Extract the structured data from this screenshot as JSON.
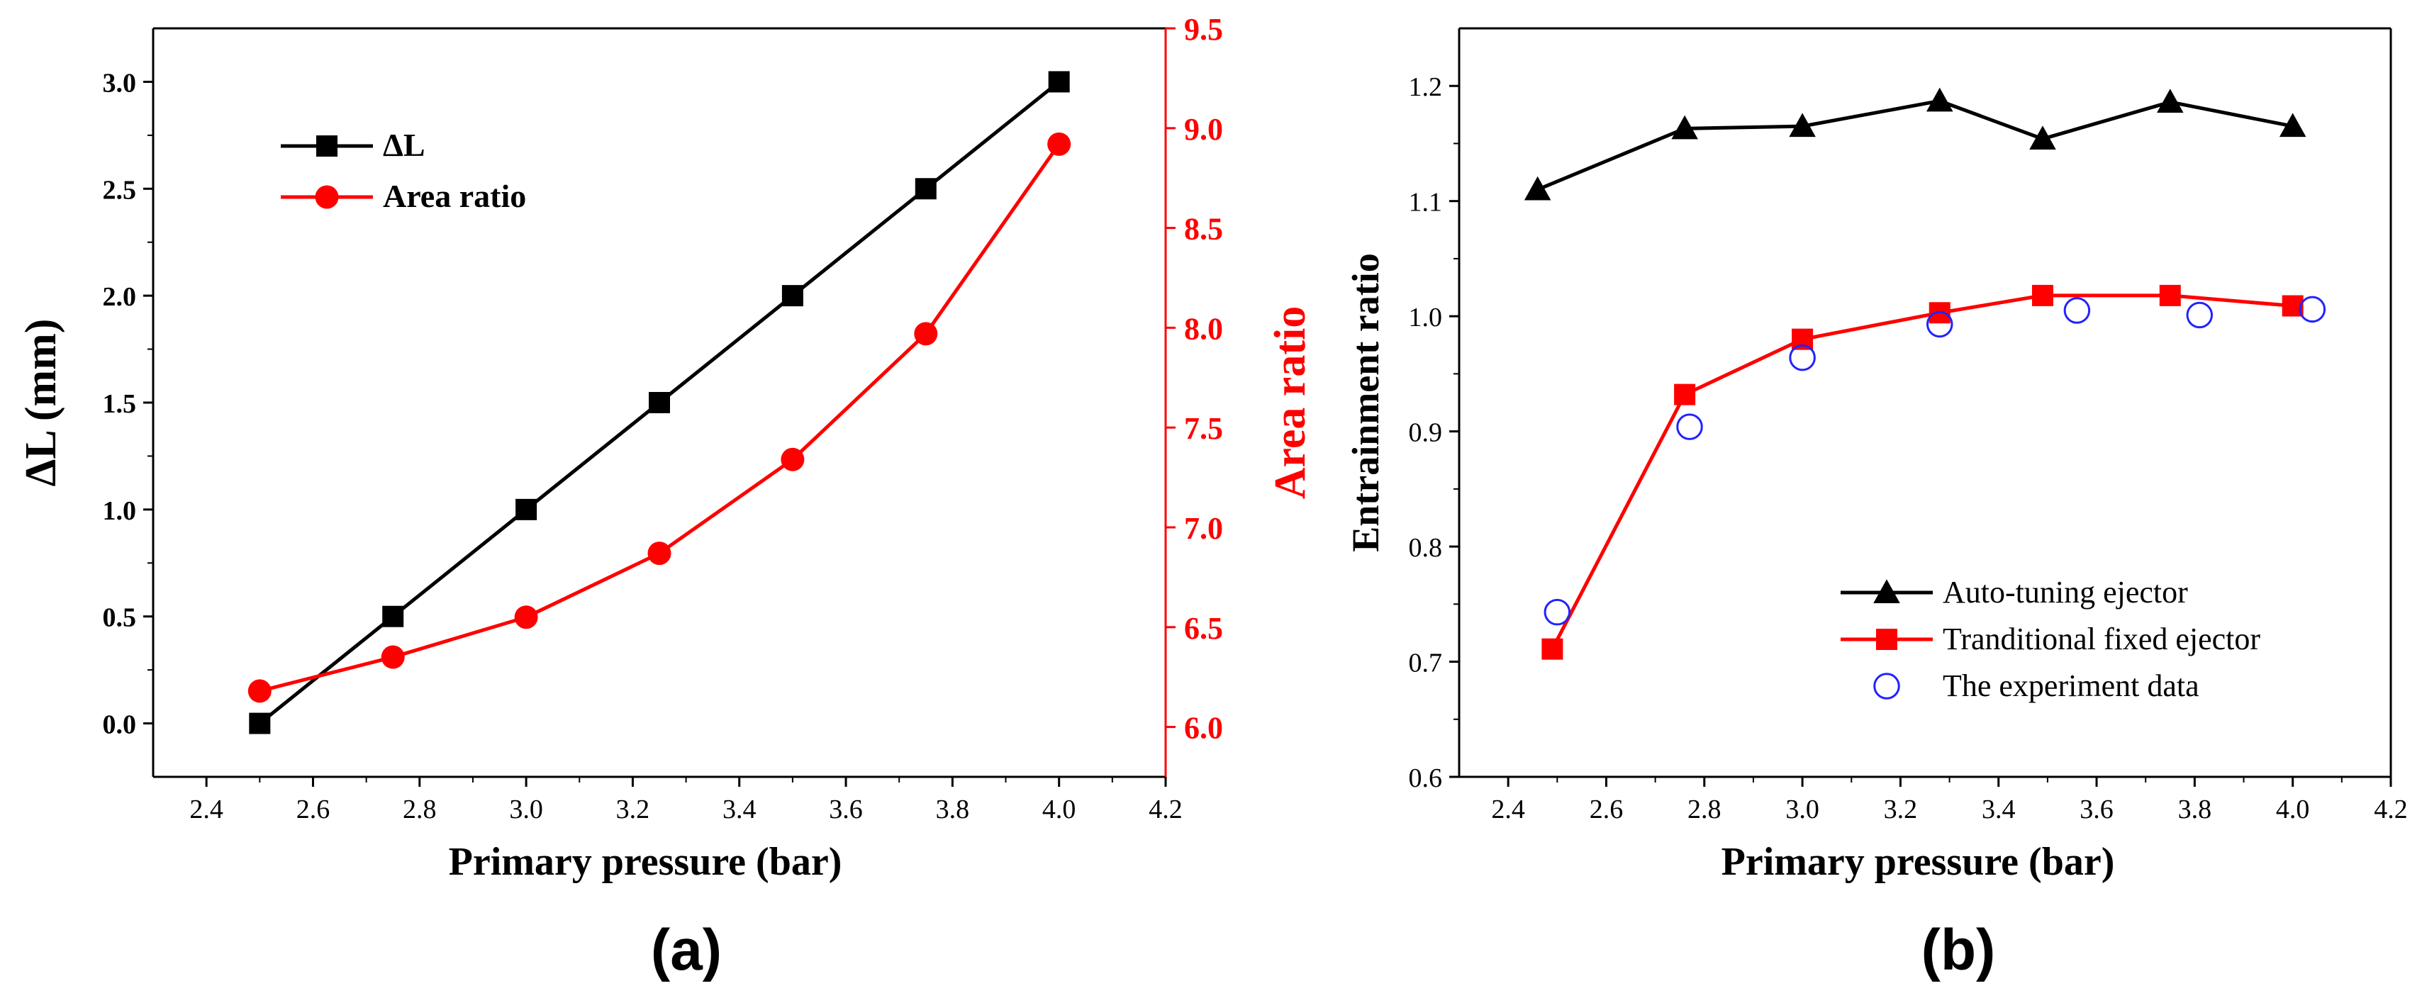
{
  "chart_data": [
    {
      "panel": "(a)",
      "type": "line",
      "xlabel": "Primary pressure (bar)",
      "ylabel": "ΔL (mm)",
      "y2label": "Area ratio",
      "xlim": [
        2.3,
        4.2
      ],
      "ylim": [
        -0.25,
        3.25
      ],
      "y2lim": [
        5.75,
        9.5
      ],
      "x_ticks": [
        2.4,
        2.6,
        2.8,
        3.0,
        3.2,
        3.4,
        3.6,
        3.8,
        4.0,
        4.2
      ],
      "x_tick_labels": [
        "2.4",
        "2.6",
        "2.8",
        "3.0",
        "3.2",
        "3.4",
        "3.6",
        "3.8",
        "4.0",
        "4.2"
      ],
      "y_ticks": [
        0.0,
        0.5,
        1.0,
        1.5,
        2.0,
        2.5,
        3.0
      ],
      "y_tick_labels": [
        "0.0",
        "0.5",
        "1.0",
        "1.5",
        "2.0",
        "2.5",
        "3.0"
      ],
      "y2_ticks": [
        6.0,
        6.5,
        7.0,
        7.5,
        8.0,
        8.5,
        9.0,
        9.5
      ],
      "y2_tick_labels": [
        "6.0",
        "6.5",
        "7.0",
        "7.5",
        "8.0",
        "8.5",
        "9.0",
        "9.5"
      ],
      "legend_position": "upper-left",
      "series": [
        {
          "name": "ΔL",
          "axis": "left",
          "marker": "square",
          "color": "#000000",
          "x": [
            2.5,
            2.75,
            3.0,
            3.25,
            3.5,
            3.75,
            4.0
          ],
          "values": [
            0.0,
            0.5,
            1.0,
            1.5,
            2.0,
            2.5,
            3.0
          ]
        },
        {
          "name": "Area ratio",
          "axis": "right",
          "marker": "circle",
          "color": "#ff0000",
          "x": [
            2.5,
            2.75,
            3.0,
            3.25,
            3.5,
            3.75,
            4.0
          ],
          "values": [
            6.18,
            6.35,
            6.55,
            6.87,
            7.34,
            7.97,
            8.92
          ]
        }
      ]
    },
    {
      "panel": "(b)",
      "type": "line",
      "xlabel": "Primary pressure (bar)",
      "ylabel": "Entrainment ratio",
      "xlim": [
        2.3,
        4.2
      ],
      "ylim": [
        0.6,
        1.25
      ],
      "x_ticks": [
        2.4,
        2.6,
        2.8,
        3.0,
        3.2,
        3.4,
        3.6,
        3.8,
        4.0,
        4.2
      ],
      "x_tick_labels": [
        "2.4",
        "2.6",
        "2.8",
        "3.0",
        "3.2",
        "3.4",
        "3.6",
        "3.8",
        "4.0",
        "4.2"
      ],
      "y_ticks": [
        0.6,
        0.7,
        0.8,
        0.9,
        1.0,
        1.1,
        1.2
      ],
      "y_tick_labels": [
        "0.6",
        "0.7",
        "0.8",
        "0.9",
        "1.0",
        "1.1",
        "1.2"
      ],
      "legend_position": "lower-right",
      "series": [
        {
          "name": "Auto-tuning ejector",
          "marker": "triangle",
          "color": "#000000",
          "line": true,
          "x": [
            2.46,
            2.76,
            3.0,
            3.28,
            3.49,
            3.75,
            4.0
          ],
          "values": [
            1.11,
            1.163,
            1.165,
            1.187,
            1.154,
            1.186,
            1.165
          ]
        },
        {
          "name": "Tranditional fixed ejector",
          "marker": "square",
          "color": "#ff0000",
          "line": true,
          "x": [
            2.49,
            2.76,
            3.0,
            3.28,
            3.49,
            3.75,
            4.0
          ],
          "values": [
            0.711,
            0.932,
            0.98,
            1.003,
            1.018,
            1.018,
            1.009
          ]
        },
        {
          "name": "The experiment data",
          "marker": "open-circle",
          "color": "#2222ff",
          "line": false,
          "x": [
            2.5,
            2.77,
            3.0,
            3.28,
            3.56,
            3.81,
            4.04
          ],
          "values": [
            0.743,
            0.904,
            0.964,
            0.993,
            1.005,
            1.001,
            1.006
          ]
        }
      ]
    }
  ]
}
